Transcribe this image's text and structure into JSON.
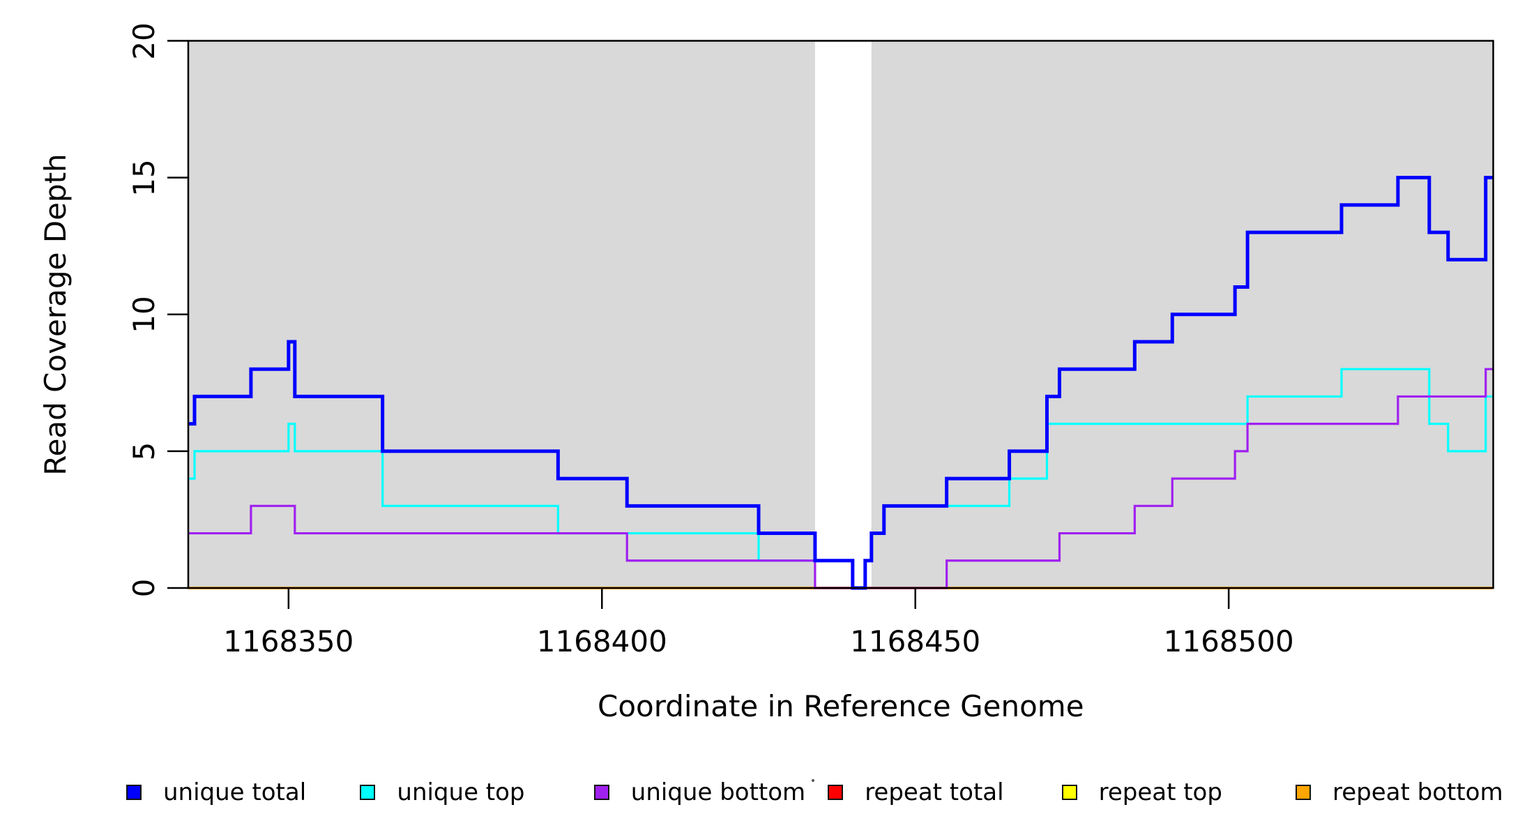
{
  "chart_data": {
    "type": "step-line",
    "title": "",
    "xlabel": "Coordinate in Reference Genome",
    "ylabel": "Read Coverage Depth",
    "xlim": [
      1168334,
      1168542.2
    ],
    "ylim": [
      0,
      20
    ],
    "x_ticks": [
      1168350,
      1168400,
      1168450,
      1168500
    ],
    "y_ticks": [
      0,
      5,
      10,
      15,
      20
    ],
    "grid": false,
    "legend_position": "bottom",
    "axis_color": "#000000",
    "shade_color": "#D9D9D9",
    "shaded_regions": [
      {
        "x0": 1168334,
        "x1": 1168434
      },
      {
        "x0": 1168443,
        "x1": 1168542.2
      }
    ],
    "series": [
      {
        "name": "repeat total",
        "color": "#FF0000",
        "width": 3.5,
        "points": [
          [
            1168334,
            0
          ]
        ]
      },
      {
        "name": "repeat top",
        "color": "#FFFF00",
        "width": 3.5,
        "points": [
          [
            1168334,
            0
          ]
        ]
      },
      {
        "name": "repeat bottom",
        "color": "#FFA500",
        "width": 3.5,
        "points": [
          [
            1168334,
            0
          ]
        ]
      },
      {
        "name": "unique top",
        "color": "#00FFFF",
        "width": 3.2,
        "points": [
          [
            1168334,
            4
          ],
          [
            1168335,
            5
          ],
          [
            1168350,
            6
          ],
          [
            1168351,
            5
          ],
          [
            1168365,
            3
          ],
          [
            1168393,
            2
          ],
          [
            1168425,
            1
          ],
          [
            1168440,
            0
          ],
          [
            1168442,
            1
          ],
          [
            1168443,
            2
          ],
          [
            1168445,
            3
          ],
          [
            1168465,
            4
          ],
          [
            1168471,
            6
          ],
          [
            1168503,
            7
          ],
          [
            1168518,
            8
          ],
          [
            1168532,
            6
          ],
          [
            1168535,
            5
          ],
          [
            1168541,
            7
          ]
        ]
      },
      {
        "name": "unique bottom",
        "color": "#A020F0",
        "width": 3.2,
        "points": [
          [
            1168334,
            2
          ],
          [
            1168344,
            3
          ],
          [
            1168351,
            2
          ],
          [
            1168404,
            1
          ],
          [
            1168434,
            0
          ],
          [
            1168455,
            1
          ],
          [
            1168473,
            2
          ],
          [
            1168485,
            3
          ],
          [
            1168491,
            4
          ],
          [
            1168501,
            5
          ],
          [
            1168503,
            6
          ],
          [
            1168527,
            7
          ],
          [
            1168541,
            8
          ]
        ]
      },
      {
        "name": "unique total",
        "color": "#0000FF",
        "width": 5,
        "points": [
          [
            1168334,
            6
          ],
          [
            1168335,
            7
          ],
          [
            1168344,
            8
          ],
          [
            1168350,
            9
          ],
          [
            1168351,
            7
          ],
          [
            1168365,
            5
          ],
          [
            1168393,
            4
          ],
          [
            1168404,
            3
          ],
          [
            1168425,
            2
          ],
          [
            1168434,
            1
          ],
          [
            1168440,
            0
          ],
          [
            1168442,
            1
          ],
          [
            1168443,
            2
          ],
          [
            1168445,
            3
          ],
          [
            1168455,
            4
          ],
          [
            1168465,
            5
          ],
          [
            1168471,
            7
          ],
          [
            1168473,
            8
          ],
          [
            1168485,
            9
          ],
          [
            1168491,
            10
          ],
          [
            1168501,
            11
          ],
          [
            1168503,
            13
          ],
          [
            1168518,
            14
          ],
          [
            1168527,
            15
          ],
          [
            1168532,
            13
          ],
          [
            1168535,
            12
          ],
          [
            1168541,
            15
          ]
        ]
      }
    ],
    "legend": [
      {
        "label": "unique total",
        "color": "#0000FF"
      },
      {
        "label": "unique top",
        "color": "#00FFFF"
      },
      {
        "label": "unique bottom",
        "color": "#A020F0"
      },
      {
        "label": "repeat total",
        "color": "#FF0000"
      },
      {
        "label": "repeat top",
        "color": "#FFFF00"
      },
      {
        "label": "repeat bottom",
        "color": "#FFA500"
      }
    ]
  }
}
